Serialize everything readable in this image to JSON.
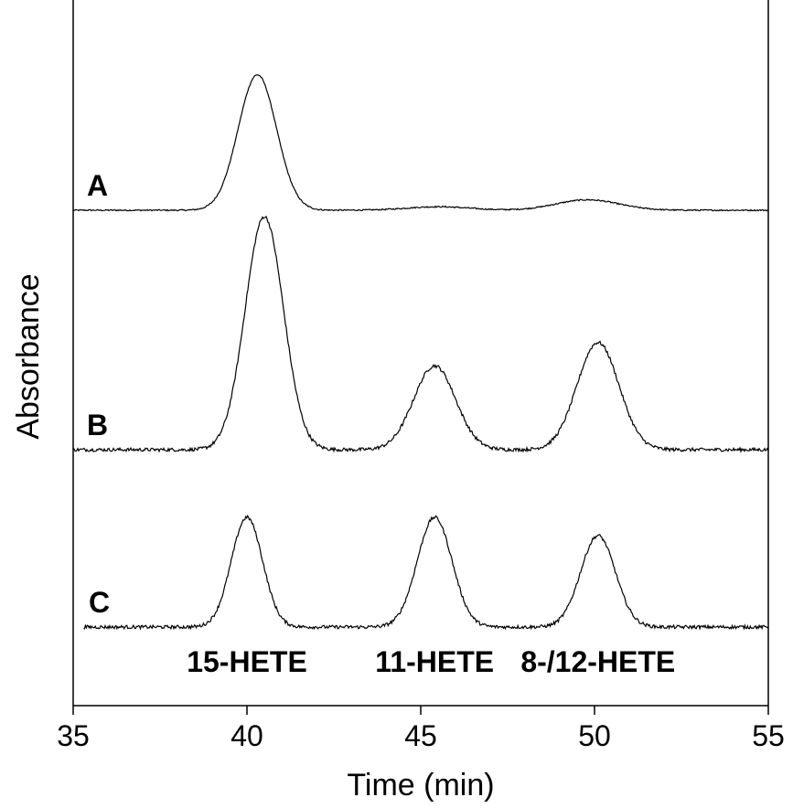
{
  "chart_data": {
    "type": "line",
    "title": "",
    "xlabel": "Time (min)",
    "ylabel": "Absorbance",
    "xlim": [
      35,
      55
    ],
    "x_ticks": [
      35,
      40,
      45,
      50,
      55
    ],
    "y_ticks": [],
    "grid": false,
    "traces": [
      {
        "label": "A",
        "baseline": 0.0,
        "peaks": [
          {
            "x": 40.3,
            "height": 0.78,
            "width": 0.55
          },
          {
            "x": 45.5,
            "height": 0.02,
            "width": 0.9
          },
          {
            "x": 49.8,
            "height": 0.06,
            "width": 0.9
          }
        ],
        "noise": 0.005
      },
      {
        "label": "B",
        "baseline": 0.0,
        "peaks": [
          {
            "x": 40.5,
            "height": 1.0,
            "width": 0.55
          },
          {
            "x": 45.4,
            "height": 0.36,
            "width": 0.6
          },
          {
            "x": 50.1,
            "height": 0.46,
            "width": 0.6
          }
        ],
        "noise": 0.01
      },
      {
        "label": "C",
        "baseline": 0.0,
        "peaks": [
          {
            "x": 40.0,
            "height": 0.48,
            "width": 0.45
          },
          {
            "x": 45.4,
            "height": 0.48,
            "width": 0.5
          },
          {
            "x": 50.1,
            "height": 0.4,
            "width": 0.5
          }
        ],
        "noise": 0.01
      }
    ],
    "peak_labels": [
      {
        "text": "15-HETE",
        "x": 40.0
      },
      {
        "text": "11-HETE",
        "x": 45.4
      },
      {
        "text": "8-/12-HETE",
        "x": 50.1
      }
    ]
  }
}
